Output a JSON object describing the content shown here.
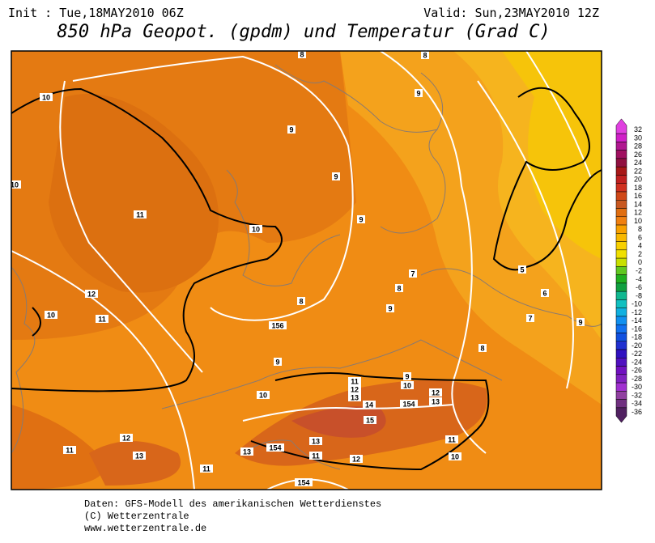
{
  "header": {
    "init": "Init : Tue,18MAY2010 06Z",
    "valid": "Valid: Sun,23MAY2010 12Z",
    "title": "850 hPa Geopot. (gpdm) und Temperatur (Grad C)"
  },
  "map": {
    "labels": [
      "10",
      "10",
      "11",
      "10",
      "9",
      "9",
      "9",
      "9",
      "8",
      "8",
      "12",
      "11",
      "10",
      "156",
      "8",
      "9",
      "8",
      "7",
      "5",
      "6",
      "7",
      "9",
      "8",
      "9",
      "10",
      "11",
      "12",
      "13",
      "9",
      "10",
      "14",
      "154",
      "12",
      "13",
      "15",
      "11",
      "12",
      "13",
      "11",
      "13",
      "154",
      "13",
      "11",
      "12",
      "11",
      "10",
      "154"
    ]
  },
  "colorbar": {
    "labels": [
      "32",
      "30",
      "28",
      "26",
      "24",
      "22",
      "20",
      "18",
      "16",
      "14",
      "12",
      "10",
      "8",
      "6",
      "4",
      "2",
      "0",
      "-2",
      "-4",
      "-6",
      "-8",
      "-10",
      "-12",
      "-14",
      "-16",
      "-18",
      "-20",
      "-22",
      "-24",
      "-26",
      "-28",
      "-30",
      "-32",
      "-34",
      "-36"
    ],
    "colors": [
      "#e040e0",
      "#d020c8",
      "#b01890",
      "#a01060",
      "#901040",
      "#a81818",
      "#c02020",
      "#d03020",
      "#d04818",
      "#c85820",
      "#e06e10",
      "#f08010",
      "#f8a000",
      "#f8b800",
      "#f8d000",
      "#f0e000",
      "#c8e000",
      "#60c820",
      "#20b020",
      "#10a040",
      "#10b890",
      "#10c0c0",
      "#10b0e0",
      "#1090f0",
      "#1070f0",
      "#1050e0",
      "#2030d0",
      "#3010c0",
      "#5010c0",
      "#7010c0",
      "#8020c0",
      "#a030d0",
      "#9040a0",
      "#703080",
      "#502060"
    ]
  },
  "footer": {
    "lines": [
      "Daten: GFS-Modell des amerikanischen Wetterdienstes",
      "(C) Wetterzentrale",
      "www.wetterzentrale.de"
    ]
  }
}
